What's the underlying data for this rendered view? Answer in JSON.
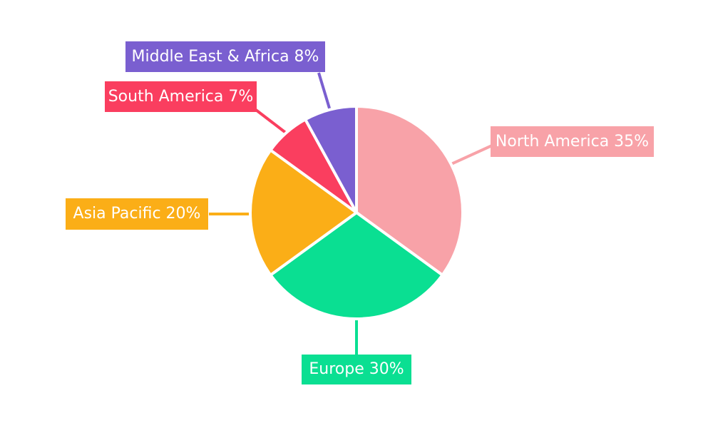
{
  "chart_data": {
    "type": "pie",
    "title": "",
    "start_angle_deg": 0,
    "direction": "clockwise",
    "total": 100,
    "background_color": "#ffffff",
    "slice_border_color": "#ffffff",
    "label_text_color": "#ffffff",
    "legend_position": "callouts-with-leader-lines",
    "categories": [
      "North America",
      "Europe",
      "Asia Pacific",
      "South America",
      "Middle East & Africa"
    ],
    "values": [
      35,
      30,
      20,
      7,
      8
    ],
    "slices": [
      {
        "id": "north-america",
        "label": "North America",
        "value": 35,
        "callout_text": "North America 35%",
        "color": "#F8A2A8"
      },
      {
        "id": "europe",
        "label": "Europe",
        "value": 30,
        "callout_text": "Europe 30%",
        "color": "#0ADF92"
      },
      {
        "id": "asia-pacific",
        "label": "Asia Pacific",
        "value": 20,
        "callout_text": "Asia Pacific 20%",
        "color": "#FBAE17"
      },
      {
        "id": "south-america",
        "label": "South America",
        "value": 7,
        "callout_text": "South America 7%",
        "color": "#FA3E5F"
      },
      {
        "id": "middle-east-africa",
        "label": "Middle East & Africa",
        "value": 8,
        "callout_text": "Middle East & Africa 8%",
        "color": "#7A5FD0"
      }
    ]
  }
}
